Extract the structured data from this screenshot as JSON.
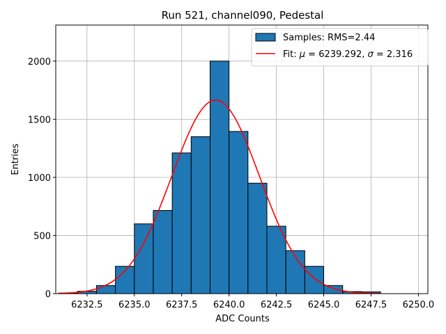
{
  "chart_data": {
    "type": "bar",
    "title": "Run 521, channel090, Pedestal",
    "xlabel": "ADC Counts",
    "ylabel": "Entries",
    "xlim": [
      6230.85,
      6250.5
    ],
    "ylim": [
      0,
      2310
    ],
    "grid": true,
    "legend_position": "top-right",
    "colors": {
      "bars": "#1f77b4",
      "bar_edge": "#000000",
      "fit": "#ff0000",
      "grid": "#b0b0b0"
    },
    "xticks": [
      6232.5,
      6235.0,
      6237.5,
      6240.0,
      6242.5,
      6245.0,
      6247.5,
      6250.0
    ],
    "xtick_labels": [
      "6232.5",
      "6235.0",
      "6237.5",
      "6240.0",
      "6242.5",
      "6245.0",
      "6247.5",
      "6250.0"
    ],
    "yticks": [
      0,
      500,
      1000,
      1500,
      2000
    ],
    "ytick_labels": [
      "0",
      "500",
      "1000",
      "1500",
      "2000"
    ],
    "bins": [
      {
        "x0": 6231.0,
        "x1": 6232.0,
        "value": 5
      },
      {
        "x0": 6232.0,
        "x1": 6233.0,
        "value": 20
      },
      {
        "x0": 6233.0,
        "x1": 6234.0,
        "value": 70
      },
      {
        "x0": 6234.0,
        "x1": 6235.0,
        "value": 235
      },
      {
        "x0": 6235.0,
        "x1": 6236.0,
        "value": 600
      },
      {
        "x0": 6236.0,
        "x1": 6237.0,
        "value": 715
      },
      {
        "x0": 6237.0,
        "x1": 6238.0,
        "value": 1210
      },
      {
        "x0": 6238.0,
        "x1": 6239.0,
        "value": 1350
      },
      {
        "x0": 6239.0,
        "x1": 6240.0,
        "value": 2000
      },
      {
        "x0": 6240.0,
        "x1": 6241.0,
        "value": 1395
      },
      {
        "x0": 6241.0,
        "x1": 6242.0,
        "value": 950
      },
      {
        "x0": 6242.0,
        "x1": 6243.0,
        "value": 580
      },
      {
        "x0": 6243.0,
        "x1": 6244.0,
        "value": 370
      },
      {
        "x0": 6244.0,
        "x1": 6245.0,
        "value": 235
      },
      {
        "x0": 6245.0,
        "x1": 6246.0,
        "value": 70
      },
      {
        "x0": 6246.0,
        "x1": 6247.0,
        "value": 18
      },
      {
        "x0": 6247.0,
        "x1": 6248.0,
        "value": 15
      }
    ],
    "fit": {
      "type": "gaussian",
      "mu": 6239.292,
      "sigma": 2.316,
      "amplitude": 1665,
      "x_range": [
        6231.0,
        6248.0
      ]
    },
    "legend": {
      "entries": [
        {
          "kind": "patch",
          "label_prefix": "Samples: ",
          "label_value": "RMS=2.44"
        },
        {
          "kind": "line",
          "label_prefix": "Fit: ",
          "label_mu_name": "μ",
          "label_mu_text": " = 6239.292, ",
          "label_sigma_name": "σ",
          "label_sigma_text": " = 2.316"
        }
      ]
    }
  }
}
